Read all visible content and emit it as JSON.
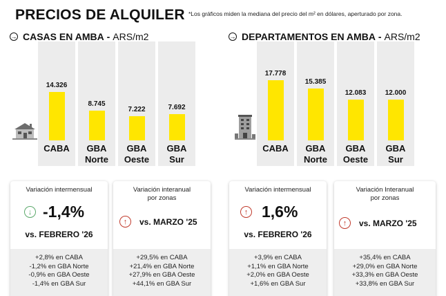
{
  "header": {
    "title": "PRECIOS DE ALQUILER",
    "footnote": "*Los gráficos miden la mediana del precio del m² en dólares, aperturado por zona."
  },
  "colors": {
    "bar": "#ffe600",
    "column_bg": "#ececec",
    "up": "#c0392b",
    "down": "#5aa86a"
  },
  "chart_data": [
    {
      "type": "bar",
      "title": "CASAS EN AMBA",
      "unit": "ARS/m2",
      "categories": [
        "CABA",
        "GBA Norte",
        "GBA Oeste",
        "GBA Sur"
      ],
      "category_lines": [
        [
          "CABA"
        ],
        [
          "GBA",
          "Norte"
        ],
        [
          "GBA",
          "Oeste"
        ],
        [
          "GBA",
          "Sur"
        ]
      ],
      "values": [
        14326,
        8745,
        7222,
        7692
      ],
      "value_labels": [
        "14.326",
        "8.745",
        "7.222",
        "7.692"
      ],
      "ylim": [
        0,
        17778
      ],
      "grid": false,
      "legend": "none",
      "icon": "house-icon"
    },
    {
      "type": "bar",
      "title": "DEPARTAMENTOS EN AMBA",
      "unit": "ARS/m2",
      "categories": [
        "CABA",
        "GBA Norte",
        "GBA Oeste",
        "GBA Sur"
      ],
      "category_lines": [
        [
          "CABA"
        ],
        [
          "GBA",
          "Norte"
        ],
        [
          "GBA",
          "Oeste"
        ],
        [
          "GBA",
          "Sur"
        ]
      ],
      "values": [
        17778,
        15385,
        12083,
        12000
      ],
      "value_labels": [
        "17.778",
        "15.385",
        "12.083",
        "12.000"
      ],
      "ylim": [
        0,
        17778
      ],
      "grid": false,
      "legend": "none",
      "icon": "building-icon"
    }
  ],
  "cards": [
    {
      "label_lines": [
        "Variación intermensual"
      ],
      "value": "-1,4%",
      "direction": "down",
      "comparison": "vs. FEBRERO '26",
      "zones": [
        "+2,8% en CABA",
        "-1,2% en GBA Norte",
        "-0,9% en GBA Oeste",
        "-1,4% en GBA Sur"
      ]
    },
    {
      "label_lines": [
        "Variación interanual",
        "por zonas"
      ],
      "direction": "up",
      "comparison": "vs. MARZO '25",
      "zones": [
        "+29,5% en CABA",
        "+21,4% en GBA Norte",
        "+27,9% en GBA Oeste",
        "+44,1% en GBA Sur"
      ]
    },
    {
      "label_lines": [
        "Variación intermensual"
      ],
      "value": "1,6%",
      "direction": "up",
      "comparison": "vs. FEBRERO '26",
      "zones": [
        "+3,9% en CABA",
        "+1,1% en GBA Norte",
        "+2,0% en GBA Oeste",
        "+1,6% en GBA Sur"
      ]
    },
    {
      "label_lines": [
        "Variación Interanual",
        "por zonas"
      ],
      "direction": "up",
      "comparison": "vs. MARZO '25",
      "zones": [
        "+35,4% en CABA",
        "+29,0% en GBA Norte",
        "+33,3% en GBA Oeste",
        "+33,8% en GBA Sur"
      ]
    }
  ]
}
